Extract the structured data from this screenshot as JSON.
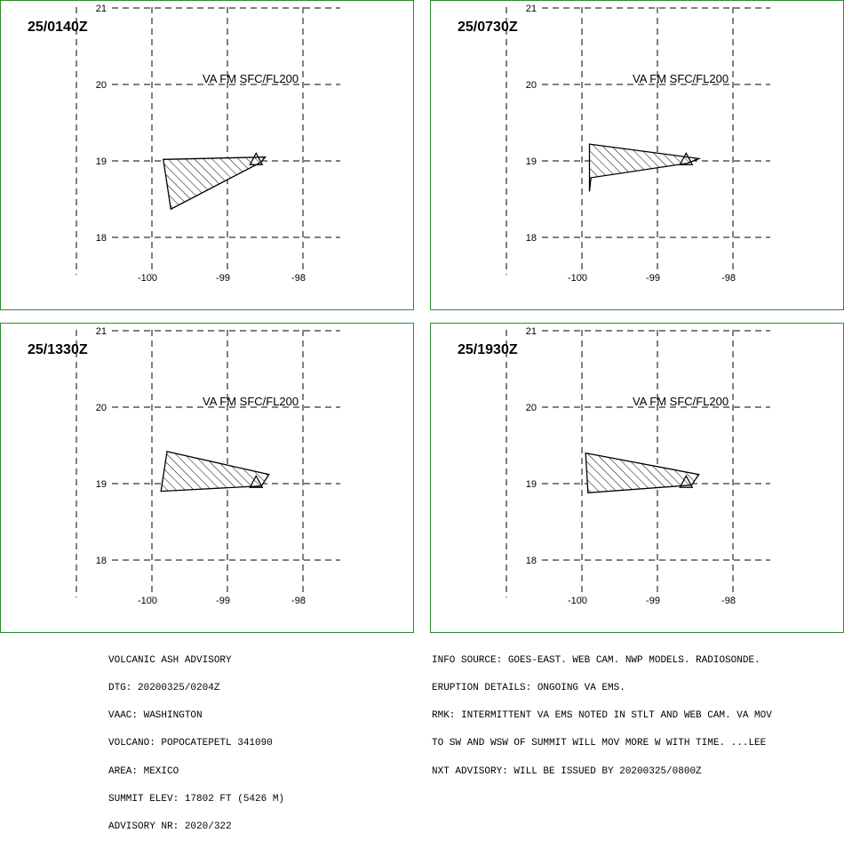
{
  "panels": [
    {
      "time": "25/0140Z",
      "label": "VA FM SFC/FL200",
      "polygon": [
        [
          -99.85,
          19.02
        ],
        [
          -98.5,
          19.05
        ],
        [
          -98.56,
          18.98
        ],
        [
          -99.75,
          18.37
        ],
        [
          -99.85,
          19.02
        ]
      ],
      "volcano": [
        -98.62,
        19.02
      ]
    },
    {
      "time": "25/0730Z",
      "label": "VA FM SFC/FL200",
      "polygon": [
        [
          -99.9,
          19.22
        ],
        [
          -98.45,
          19.03
        ],
        [
          -98.6,
          18.97
        ],
        [
          -99.88,
          18.78
        ],
        [
          -99.9,
          18.6
        ],
        [
          -99.9,
          19.22
        ]
      ],
      "volcano": [
        -98.62,
        19.02
      ]
    },
    {
      "time": "25/1330Z",
      "label": "VA FM SFC/FL200",
      "polygon": [
        [
          -99.8,
          19.42
        ],
        [
          -98.45,
          19.12
        ],
        [
          -98.55,
          18.97
        ],
        [
          -99.88,
          18.9
        ],
        [
          -99.8,
          19.42
        ]
      ],
      "volcano": [
        -98.62,
        19.02
      ]
    },
    {
      "time": "25/1930Z",
      "label": "VA FM SFC/FL200",
      "polygon": [
        [
          -99.95,
          19.4
        ],
        [
          -98.45,
          19.12
        ],
        [
          -98.55,
          18.98
        ],
        [
          -99.92,
          18.88
        ],
        [
          -99.95,
          19.4
        ]
      ],
      "volcano": [
        -98.62,
        19.02
      ]
    }
  ],
  "axes": {
    "lon_ticks": [
      "-100",
      "-99",
      "-98"
    ],
    "lat_ticks": [
      "21",
      "20",
      "19",
      "18"
    ],
    "lon_values": [
      -100,
      -99,
      -98
    ],
    "lat_values": [
      21,
      20,
      19,
      18
    ]
  },
  "advisory_left": [
    "VOLCANIC ASH ADVISORY",
    "DTG: 20200325/0204Z",
    "VAAC: WASHINGTON",
    "VOLCANO: POPOCATEPETL 341090",
    "AREA: MEXICO",
    "SUMMIT ELEV: 17802 FT (5426 M)",
    "ADVISORY NR: 2020/322"
  ],
  "advisory_right": [
    "INFO SOURCE: GOES-EAST. WEB CAM. NWP MODELS. RADIOSONDE.",
    "ERUPTION DETAILS: ONGOING VA EMS.",
    "RMK: INTERMITTENT VA EMS NOTED IN STLT AND WEB CAM. VA MOV",
    "TO SW AND WSW OF SUMMIT WILL MOV MORE W WITH TIME. ...LEE",
    "NXT ADVISORY: WILL BE ISSUED BY 20200325/0800Z"
  ],
  "colors": {
    "panel_border": "#2e8b2e",
    "ink": "#000000"
  }
}
